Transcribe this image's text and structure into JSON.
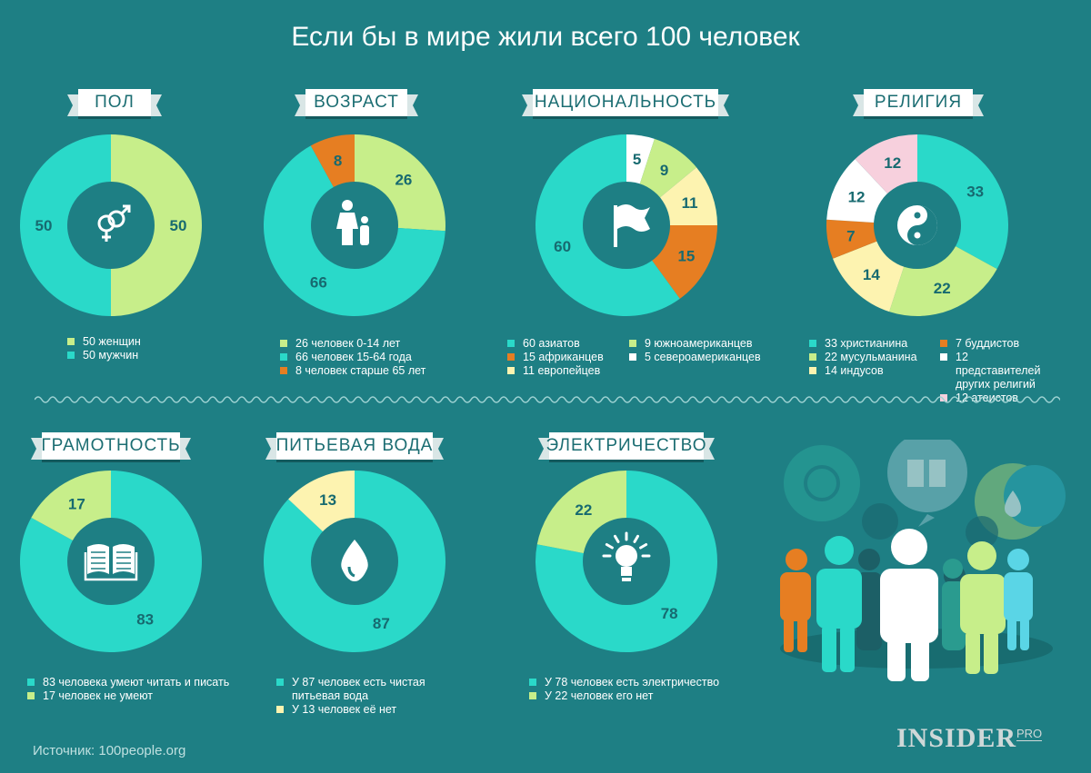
{
  "title": "Если бы в мире жили всего 100 человек",
  "source": "Источник: 100people.org",
  "logo": {
    "main": "INSIDER",
    "sup": "PRO"
  },
  "colors": {
    "bg": "#1e7f84",
    "teal": "#2ad9c9",
    "lime": "#c7ee8a",
    "orange": "#e67e22",
    "cream": "#fdf3b0",
    "white": "#ffffff",
    "pink": "#f7d0dd"
  },
  "chart_data": [
    {
      "id": "gender",
      "type": "pie",
      "title": "ПОЛ",
      "icon": "gender-icon",
      "slices": [
        {
          "label": "50 женщин",
          "value": 50,
          "color": "#c7ee8a"
        },
        {
          "label": "50 мужчин",
          "value": 50,
          "color": "#2ad9c9"
        }
      ]
    },
    {
      "id": "age",
      "type": "pie",
      "title": "ВОЗРАСТ",
      "icon": "family-icon",
      "slices": [
        {
          "label": "26 человек  0-14 лет",
          "value": 26,
          "color": "#c7ee8a"
        },
        {
          "label": "66 человек  15-64 года",
          "value": 66,
          "color": "#2ad9c9"
        },
        {
          "label": "8 человек старше 65 лет",
          "value": 8,
          "color": "#e67e22"
        }
      ]
    },
    {
      "id": "nationality",
      "type": "pie",
      "title": "НАЦИОНАЛЬНОСТЬ",
      "icon": "flag-icon",
      "slices": [
        {
          "label": "60 азиатов",
          "value": 60,
          "color": "#2ad9c9"
        },
        {
          "label": "15 африканцев",
          "value": 15,
          "color": "#e67e22"
        },
        {
          "label": "11 европейцев",
          "value": 11,
          "color": "#fdf3b0"
        },
        {
          "label": "9 южноамериканцев",
          "value": 9,
          "color": "#c7ee8a"
        },
        {
          "label": "5 североамериканцев",
          "value": 5,
          "color": "#ffffff"
        }
      ]
    },
    {
      "id": "religion",
      "type": "pie",
      "title": "РЕЛИГИЯ",
      "icon": "yin-yang-icon",
      "slices": [
        {
          "label": "33 христианина",
          "value": 33,
          "color": "#2ad9c9"
        },
        {
          "label": "22 мусульманина",
          "value": 22,
          "color": "#c7ee8a"
        },
        {
          "label": "14 индусов",
          "value": 14,
          "color": "#fdf3b0"
        },
        {
          "label": "7 буддистов",
          "value": 7,
          "color": "#e67e22"
        },
        {
          "label": "12 представителей других религий",
          "value": 12,
          "color": "#ffffff"
        },
        {
          "label": "12 атеистов",
          "value": 12,
          "color": "#f7d0dd"
        }
      ]
    },
    {
      "id": "literacy",
      "type": "pie",
      "title": "ГРАМОТНОСТЬ",
      "icon": "book-icon",
      "slices": [
        {
          "label": "83 человека умеют читать и писать",
          "value": 83,
          "color": "#2ad9c9"
        },
        {
          "label": "17 человек не умеют",
          "value": 17,
          "color": "#c7ee8a"
        }
      ]
    },
    {
      "id": "water",
      "type": "pie",
      "title": "ПИТЬЕВАЯ ВОДА",
      "icon": "water-drop-icon",
      "slices": [
        {
          "label": "У 87 человек есть чистая питьевая вода",
          "value": 87,
          "color": "#2ad9c9"
        },
        {
          "label": "У 13 человек её нет",
          "value": 13,
          "color": "#fdf3b0"
        }
      ]
    },
    {
      "id": "electricity",
      "type": "pie",
      "title": "ЭЛЕКТРИЧЕСТВО",
      "icon": "light-bulb-icon",
      "slices": [
        {
          "label": "У 78 человек есть электричество",
          "value": 78,
          "color": "#2ad9c9"
        },
        {
          "label": "У 22 человек его нет",
          "value": 22,
          "color": "#c7ee8a"
        }
      ]
    }
  ],
  "legends": {
    "gender": [
      {
        "text": "50 женщин",
        "color": "#c7ee8a"
      },
      {
        "text": "50 мужчин",
        "color": "#2ad9c9"
      }
    ],
    "age": [
      {
        "text": "26 человек  0-14 лет",
        "color": "#c7ee8a"
      },
      {
        "text": "66 человек  15-64 года",
        "color": "#2ad9c9"
      },
      {
        "text": "8 человек старше 65 лет",
        "color": "#e67e22"
      }
    ],
    "nationality_a": [
      {
        "text": "60 азиатов",
        "color": "#2ad9c9"
      },
      {
        "text": "15 африканцев",
        "color": "#e67e22"
      },
      {
        "text": "11 европейцев",
        "color": "#fdf3b0"
      }
    ],
    "nationality_b": [
      {
        "text": "9 южноамериканцев",
        "color": "#c7ee8a"
      },
      {
        "text": "5 североамериканцев",
        "color": "#ffffff"
      }
    ],
    "religion_a": [
      {
        "text": "33 христианина",
        "color": "#2ad9c9"
      },
      {
        "text": "22 мусульманина",
        "color": "#c7ee8a"
      },
      {
        "text": "14 индусов",
        "color": "#fdf3b0"
      }
    ],
    "religion_b": [
      {
        "text": "7 буддистов",
        "color": "#e67e22"
      },
      {
        "text": "12 представителей других религий",
        "color": "#ffffff"
      },
      {
        "text": "12 атеистов",
        "color": "#f7d0dd"
      }
    ],
    "literacy": [
      {
        "text": "83 человека умеют читать и писать",
        "color": "#2ad9c9"
      },
      {
        "text": "17 человек не умеют",
        "color": "#c7ee8a"
      }
    ],
    "water": [
      {
        "text": "У 87 человек есть чистая питьевая вода",
        "color": "#2ad9c9"
      },
      {
        "text": "У 13 человек её нет",
        "color": "#fdf3b0"
      }
    ],
    "electricity": [
      {
        "text": "У 78 человек есть электричество",
        "color": "#2ad9c9"
      },
      {
        "text": "У 22 человек его нет",
        "color": "#c7ee8a"
      }
    ]
  }
}
